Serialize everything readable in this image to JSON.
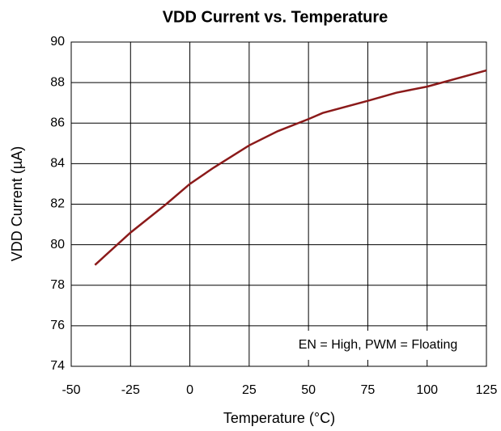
{
  "chart_data": {
    "type": "line",
    "title": "VDD Current vs. Temperature",
    "xlabel": "Temperature (°C)",
    "ylabel": "VDD Current (µA)",
    "annotation": "EN = High, PWM = Floating",
    "x": [
      -40,
      -25,
      -10,
      0,
      10,
      25,
      37,
      50,
      56,
      75,
      87,
      100,
      125
    ],
    "series": [
      {
        "name": "VDD Current",
        "color": "#8b1a1a",
        "values": [
          79.0,
          80.6,
          82.0,
          83.0,
          83.8,
          84.9,
          85.6,
          86.2,
          86.5,
          87.1,
          87.5,
          87.8,
          88.6
        ]
      }
    ],
    "xlim": [
      -50,
      125
    ],
    "xticks": [
      -50,
      -25,
      0,
      25,
      50,
      75,
      100,
      125
    ],
    "ylim": [
      74,
      90
    ],
    "yticks": [
      74,
      76,
      78,
      80,
      82,
      84,
      86,
      88,
      90
    ],
    "grid": true
  }
}
